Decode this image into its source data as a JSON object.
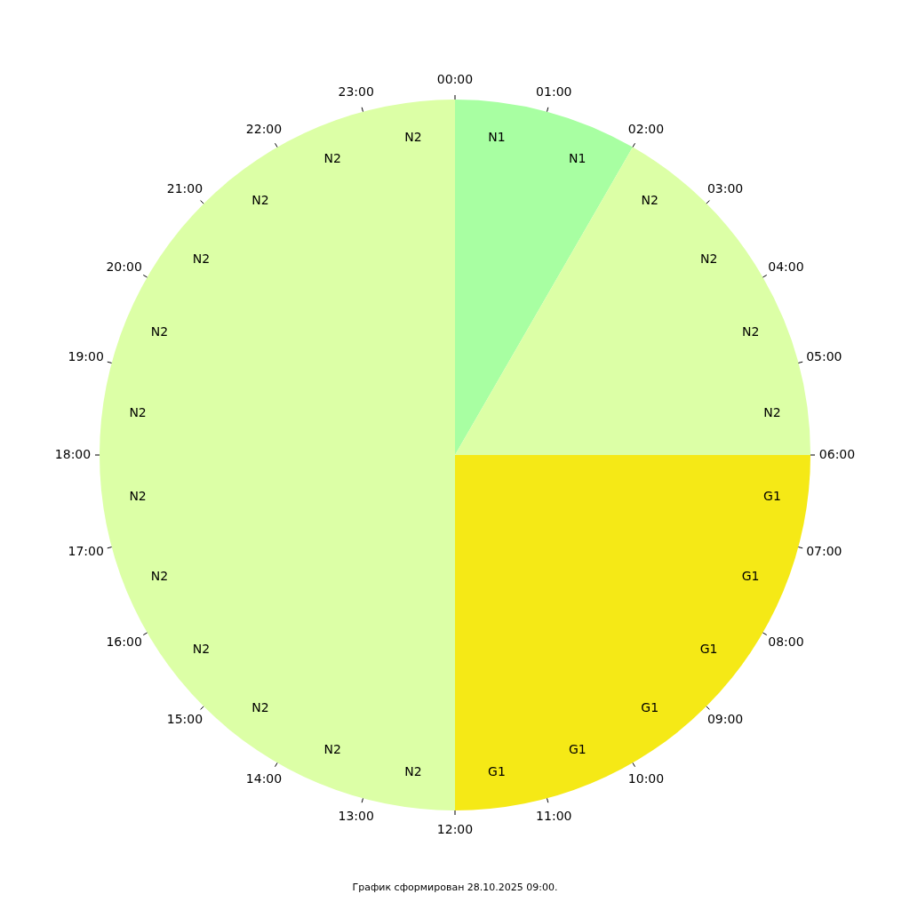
{
  "chart_data": {
    "type": "pie",
    "categories": [
      "N1",
      "N2",
      "G1",
      "N2"
    ],
    "values": [
      8.3333,
      16.6667,
      25,
      50
    ],
    "colors": [
      "#a8ffa2",
      "#dcffa6",
      "#f5e916",
      "#dcffa6"
    ],
    "legend": false,
    "annotations": [
      "00:00",
      "01:00",
      "02:00",
      "03:00",
      "04:00",
      "05:00",
      "06:00",
      "07:00",
      "08:00",
      "09:00",
      "10:00",
      "11:00",
      "12:00",
      "13:00",
      "14:00",
      "15:00",
      "16:00",
      "17:00",
      "18:00",
      "19:00",
      "20:00",
      "21:00",
      "22:00",
      "23:00",
      "График сформирован 28.10.2025 09:00."
    ]
  }
}
